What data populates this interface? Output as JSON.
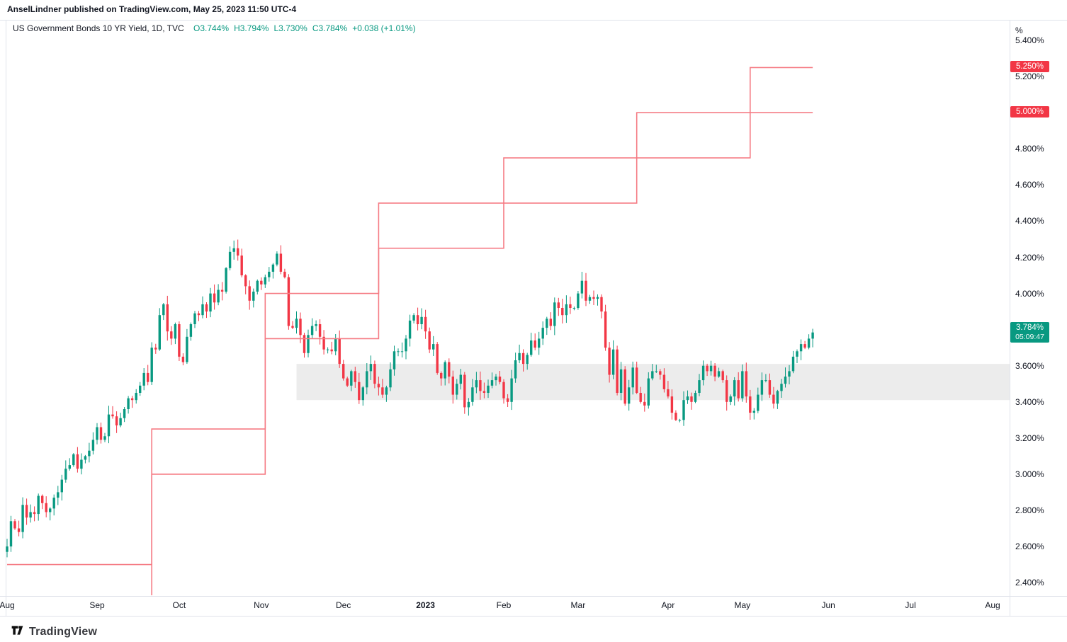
{
  "header": {
    "author": "AnselLindner",
    "published_rest": " published on TradingView.com, May 25, 2023 11:50 UTC-4"
  },
  "symbol_info": {
    "title": "US Government Bonds 10 YR Yield, 1D, TVC",
    "o": "O3.744%",
    "h": "H3.794%",
    "l": "L3.730%",
    "c": "C3.784%",
    "change": "+0.038 (+1.01%)",
    "up_text_color": "#089981"
  },
  "price_axis": {
    "unit": "%",
    "ticks": [
      {
        "t": "5.400%",
        "v": 5.4
      },
      {
        "t": "5.200%",
        "v": 5.2
      },
      {
        "t": "5.000%",
        "v": 5.0
      },
      {
        "t": "4.800%",
        "v": 4.8
      },
      {
        "t": "4.600%",
        "v": 4.6
      },
      {
        "t": "4.400%",
        "v": 4.4
      },
      {
        "t": "4.200%",
        "v": 4.2
      },
      {
        "t": "4.000%",
        "v": 4.0
      },
      {
        "t": "3.800%",
        "v": 3.8
      },
      {
        "t": "3.600%",
        "v": 3.6
      },
      {
        "t": "3.400%",
        "v": 3.4
      },
      {
        "t": "3.200%",
        "v": 3.2
      },
      {
        "t": "3.000%",
        "v": 3.0
      },
      {
        "t": "2.800%",
        "v": 2.8
      },
      {
        "t": "2.600%",
        "v": 2.6
      },
      {
        "t": "2.400%",
        "v": 2.4
      }
    ],
    "badges": [
      {
        "text": "5.250%",
        "value": 5.25,
        "bg": "#f23645",
        "name": "fed-upper-price-label"
      },
      {
        "text": "5.000%",
        "value": 5.0,
        "bg": "#f23645",
        "name": "fed-lower-price-label"
      },
      {
        "text": "3.784%",
        "value": 3.784,
        "bg": "#089981",
        "countdown": "05:09:47",
        "name": "last-price-label"
      }
    ]
  },
  "time_axis": {
    "labels": [
      {
        "label": "Aug",
        "day_index": 0
      },
      {
        "label": "Sep",
        "day_index": 23
      },
      {
        "label": "Oct",
        "day_index": 44
      },
      {
        "label": "Nov",
        "day_index": 65
      },
      {
        "label": "Dec",
        "day_index": 86
      },
      {
        "label": "2023",
        "day_index": 107,
        "bold": true
      },
      {
        "label": "Feb",
        "day_index": 127
      },
      {
        "label": "Mar",
        "day_index": 146
      },
      {
        "label": "Apr",
        "day_index": 169
      },
      {
        "label": "May",
        "day_index": 188
      },
      {
        "label": "Jun",
        "day_index": 210
      },
      {
        "label": "Jul",
        "day_index": 231
      },
      {
        "label": "Aug",
        "day_index": 252
      }
    ]
  },
  "footer": {
    "brand": "TradingView"
  },
  "chart_data": {
    "type": "candlestick",
    "title": "US Government Bonds 10 YR Yield",
    "interval": "1D",
    "exchange": "TVC",
    "unit": "%",
    "date_range": "Aug 2022 - May 25 2023",
    "yaxis": {
      "min": 2.33,
      "max": 5.51,
      "tick_step": 0.2
    },
    "up_color": "#089981",
    "down_color": "#f23645",
    "first_open": 2.57,
    "wick_jitter": 0.045,
    "last_index": 206,
    "closes": [
      2.6,
      2.74,
      2.7,
      2.68,
      2.83,
      2.76,
      2.79,
      2.78,
      2.88,
      2.84,
      2.79,
      2.81,
      2.87,
      2.9,
      2.97,
      3.03,
      3.05,
      3.11,
      3.03,
      3.08,
      3.1,
      3.13,
      3.19,
      3.26,
      3.19,
      3.21,
      3.33,
      3.32,
      3.27,
      3.31,
      3.36,
      3.42,
      3.41,
      3.45,
      3.49,
      3.56,
      3.51,
      3.7,
      3.69,
      3.88,
      3.94,
      3.79,
      3.75,
      3.83,
      3.65,
      3.62,
      3.76,
      3.83,
      3.89,
      3.88,
      3.94,
      3.9,
      4.0,
      3.95,
      4.02,
      4.01,
      4.14,
      4.23,
      4.25,
      4.21,
      4.1,
      4.04,
      3.96,
      4.01,
      4.07,
      4.05,
      4.09,
      4.12,
      4.16,
      4.22,
      4.12,
      4.09,
      3.82,
      3.81,
      3.86,
      3.77,
      3.67,
      3.77,
      3.82,
      3.83,
      3.76,
      3.69,
      3.69,
      3.68,
      3.75,
      3.61,
      3.53,
      3.49,
      3.57,
      3.51,
      3.41,
      3.48,
      3.57,
      3.61,
      3.5,
      3.48,
      3.44,
      3.48,
      3.58,
      3.68,
      3.68,
      3.68,
      3.75,
      3.85,
      3.88,
      3.83,
      3.87,
      3.79,
      3.69,
      3.72,
      3.56,
      3.53,
      3.62,
      3.54,
      3.44,
      3.5,
      3.55,
      3.37,
      3.4,
      3.48,
      3.52,
      3.46,
      3.45,
      3.49,
      3.52,
      3.54,
      3.51,
      3.42,
      3.4,
      3.53,
      3.63,
      3.67,
      3.61,
      3.66,
      3.74,
      3.7,
      3.75,
      3.81,
      3.86,
      3.82,
      3.95,
      3.92,
      3.88,
      3.94,
      3.92,
      3.92,
      4.0,
      4.07,
      3.96,
      3.98,
      3.97,
      3.98,
      3.9,
      3.7,
      3.55,
      3.69,
      3.45,
      3.58,
      3.39,
      3.48,
      3.59,
      3.45,
      3.4,
      3.38,
      3.53,
      3.57,
      3.57,
      3.55,
      3.47,
      3.43,
      3.34,
      3.3,
      3.3,
      3.41,
      3.43,
      3.4,
      3.45,
      3.52,
      3.6,
      3.57,
      3.6,
      3.54,
      3.57,
      3.52,
      3.4,
      3.43,
      3.52,
      3.42,
      3.57,
      3.43,
      3.34,
      3.35,
      3.44,
      3.52,
      3.52,
      3.44,
      3.39,
      3.46,
      3.5,
      3.54,
      3.57,
      3.65,
      3.68,
      3.72,
      3.7,
      3.75,
      3.784
    ],
    "highlight_band": {
      "from": 3.41,
      "to": 3.61,
      "start_index": 74,
      "color": "#ececec"
    },
    "fed_funds": {
      "color": "#f57b84",
      "upper": {
        "name": "fed-funds-upper-bound",
        "points": [
          [
            0,
            2.5
          ],
          [
            37,
            3.25
          ],
          [
            66,
            4.0
          ],
          [
            95,
            4.5
          ],
          [
            127,
            4.75
          ],
          [
            161,
            5.0
          ],
          [
            190,
            5.25
          ]
        ]
      },
      "lower": {
        "name": "fed-funds-lower-bound",
        "points": [
          [
            0,
            2.25
          ],
          [
            37,
            3.0
          ],
          [
            66,
            3.75
          ],
          [
            95,
            4.25
          ],
          [
            127,
            4.5
          ],
          [
            161,
            4.75
          ],
          [
            190,
            5.0
          ]
        ]
      }
    }
  }
}
